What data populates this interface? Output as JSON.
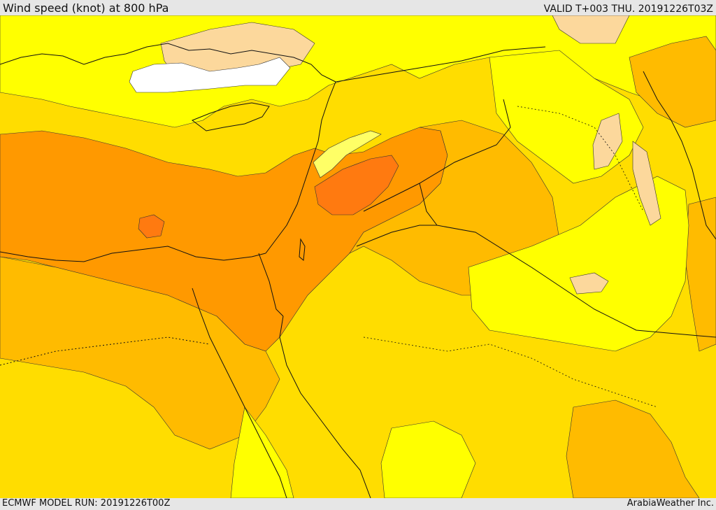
{
  "header": {
    "title": "Wind speed (knot) at 800 hPa",
    "valid_time": "VALID T+003 THU. 20191226T03Z"
  },
  "footer": {
    "model_run": "ECMWF MODEL RUN: 20191226T00Z",
    "credit": "ArabiaWeather Inc."
  },
  "colors": {
    "lightest": "#ffffff",
    "light_peach": "#fcd89c",
    "pale_yellow": "#ffff66",
    "yellow": "#ffff00",
    "gold": "#ffdd00",
    "amber": "#ffbb00",
    "orange": "#ff9900",
    "dark_orange": "#ff7a10"
  }
}
